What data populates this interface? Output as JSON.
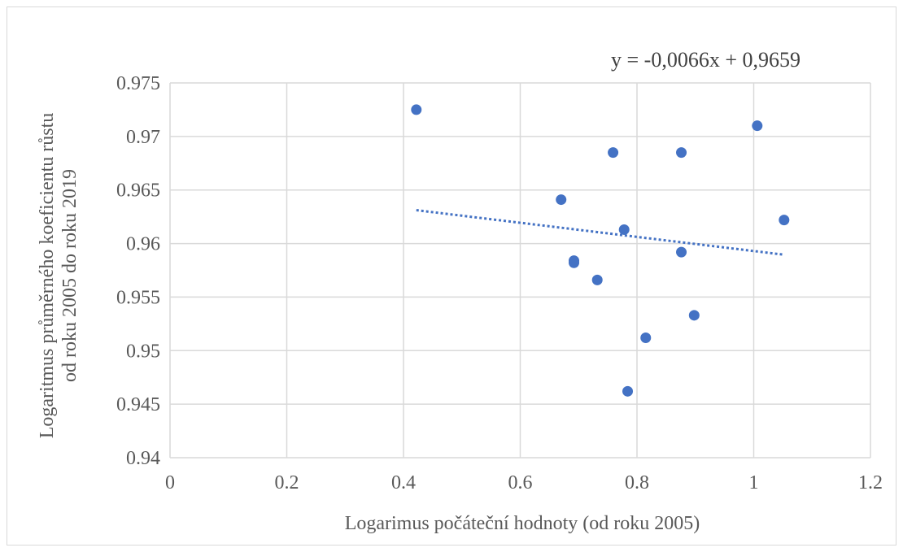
{
  "chart_data": {
    "type": "scatter",
    "title": "",
    "xlabel": "Logarimus  počáteční hodnoty (od roku 2005)",
    "ylabel_lines": [
      "Logaritmus průměrného koeficientu růstu",
      "od roku 2005 do roku 2019"
    ],
    "xlim": [
      0,
      1.2
    ],
    "ylim": [
      0.94,
      0.975
    ],
    "x_ticks": [
      0,
      0.2,
      0.4,
      0.6,
      0.8,
      1,
      1.2
    ],
    "x_tick_labels": [
      "0",
      "0.2",
      "0.4",
      "0.6",
      "0.8",
      "1",
      "1.2"
    ],
    "y_ticks": [
      0.94,
      0.945,
      0.95,
      0.955,
      0.96,
      0.965,
      0.97,
      0.975
    ],
    "y_tick_labels": [
      "0.94",
      "0.945",
      "0.95",
      "0.955",
      "0.96",
      "0.965",
      "0.97",
      "0.975"
    ],
    "grid": true,
    "points": [
      {
        "x": 0.422,
        "y": 0.9725
      },
      {
        "x": 0.67,
        "y": 0.9641
      },
      {
        "x": 0.692,
        "y": 0.9584
      },
      {
        "x": 0.692,
        "y": 0.9582
      },
      {
        "x": 0.732,
        "y": 0.9566
      },
      {
        "x": 0.759,
        "y": 0.9685
      },
      {
        "x": 0.778,
        "y": 0.9613
      },
      {
        "x": 0.784,
        "y": 0.9462
      },
      {
        "x": 0.815,
        "y": 0.9512
      },
      {
        "x": 0.876,
        "y": 0.9685
      },
      {
        "x": 0.876,
        "y": 0.9592
      },
      {
        "x": 0.898,
        "y": 0.9533
      },
      {
        "x": 1.006,
        "y": 0.971
      },
      {
        "x": 1.052,
        "y": 0.9622
      }
    ],
    "trendline": {
      "slope": -0.0066,
      "intercept": 0.9659,
      "x_range": [
        0.422,
        1.052
      ],
      "equation": "y = -0,0066x + 0,9659"
    },
    "colors": {
      "points": "#4472c4",
      "trendline": "#4472c4",
      "grid": "#d9d9d9"
    }
  }
}
